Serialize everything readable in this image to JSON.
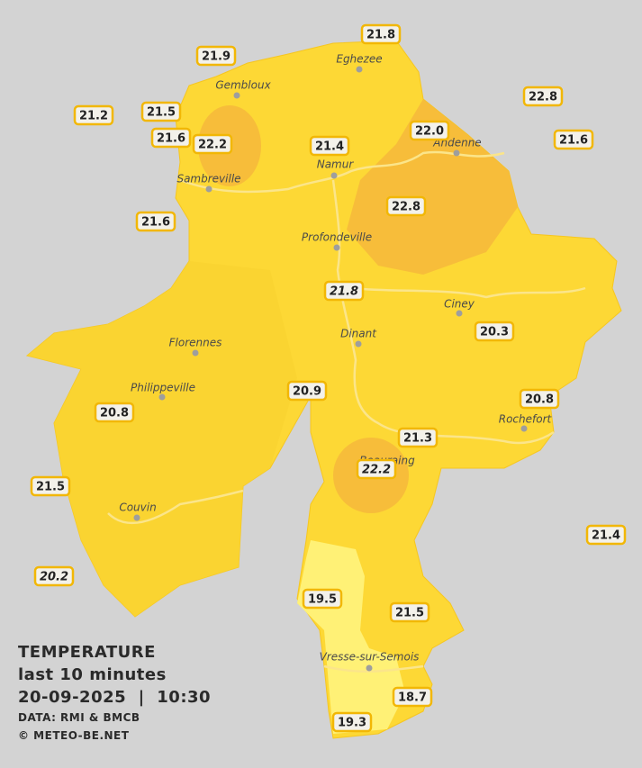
{
  "legend": {
    "title": "TEMPERATURE",
    "subtitle": "last 10 minutes",
    "datetime": "20-09-2025  |  10:30",
    "source": "DATA: RMI & BMCB",
    "credit": "© METEO-BE.NET"
  },
  "cities": [
    "Eghezee",
    "Gembloux",
    "Sambreville",
    "Namur",
    "Andenne",
    "Profondeville",
    "Ciney",
    "Dinant",
    "Florennes",
    "Philippeville",
    "Rochefort",
    "Beauraing",
    "Couvin",
    "Vresse-sur-Semois"
  ],
  "stations": [
    {
      "label": "21.8",
      "italic": false
    },
    {
      "label": "21.9",
      "italic": false
    },
    {
      "label": "21.2",
      "italic": false
    },
    {
      "label": "21.5",
      "italic": false
    },
    {
      "label": "21.6",
      "italic": false
    },
    {
      "label": "22.2",
      "italic": false
    },
    {
      "label": "21.4",
      "italic": false
    },
    {
      "label": "22.0",
      "italic": false
    },
    {
      "label": "22.8",
      "italic": false
    },
    {
      "label": "21.6",
      "italic": false
    },
    {
      "label": "22.8",
      "italic": false
    },
    {
      "label": "21.6",
      "italic": false
    },
    {
      "label": "21.8",
      "italic": true
    },
    {
      "label": "20.3",
      "italic": false
    },
    {
      "label": "20.9",
      "italic": false
    },
    {
      "label": "20.8",
      "italic": false
    },
    {
      "label": "20.8",
      "italic": false
    },
    {
      "label": "21.3",
      "italic": false
    },
    {
      "label": "22.2",
      "italic": true
    },
    {
      "label": "21.5",
      "italic": false
    },
    {
      "label": "21.4",
      "italic": false
    },
    {
      "label": "20.2",
      "italic": true
    },
    {
      "label": "19.5",
      "italic": false
    },
    {
      "label": "21.5",
      "italic": false
    },
    {
      "label": "18.7",
      "italic": false
    },
    {
      "label": "19.3",
      "italic": false
    }
  ]
}
